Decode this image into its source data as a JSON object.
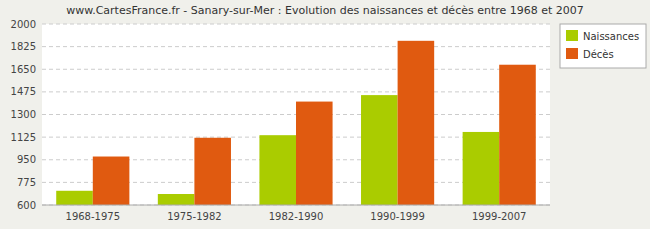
{
  "chart_data": {
    "type": "bar",
    "title": "www.CartesFrance.fr - Sanary-sur-Mer : Evolution des naissances et décès entre 1968 et 2007",
    "categories": [
      "1968-1975",
      "1975-1982",
      "1982-1990",
      "1990-1999",
      "1999-2007"
    ],
    "series": [
      {
        "name": "Naissances",
        "color": "#aacc00",
        "values": [
          710,
          685,
          1140,
          1450,
          1165
        ]
      },
      {
        "name": "Décès",
        "color": "#e05a10",
        "values": [
          975,
          1120,
          1400,
          1870,
          1685
        ]
      }
    ],
    "ylim": [
      600,
      2000
    ],
    "yticks": [
      600,
      775,
      950,
      1125,
      1300,
      1475,
      1650,
      1825,
      2000
    ],
    "grid": true,
    "legend": "upper right"
  }
}
